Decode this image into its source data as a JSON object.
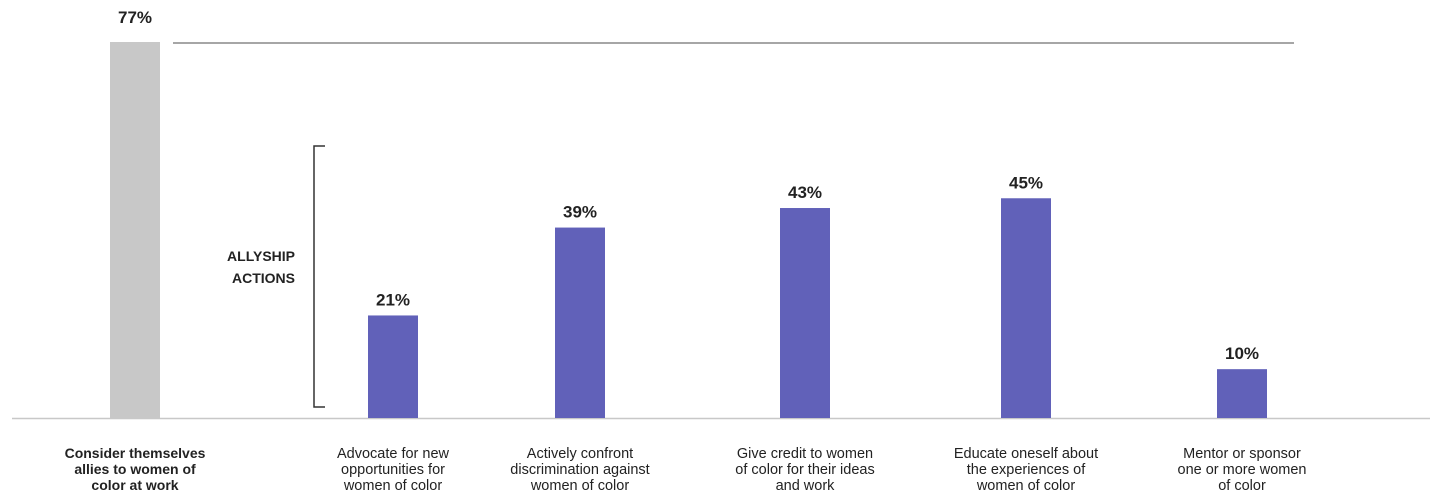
{
  "chart_data": {
    "type": "bar",
    "ylim": [
      0,
      80
    ],
    "grid": false,
    "colors": {
      "highlight_bar": "#c8c8c8",
      "action_bars": "#6161b9",
      "reference_line": "#a6a6a6",
      "baseline": "#c8c8c8",
      "bracket": "#333333"
    },
    "bracket_label": [
      "ALLYSHIP",
      "ACTIONS"
    ],
    "bars": [
      {
        "label": [
          "Consider themselves",
          "allies to women of",
          "color at work"
        ],
        "value": 77,
        "value_label": "77%",
        "group": "highlight"
      },
      {
        "label": [
          "Advocate for new",
          "opportunities for",
          "women of color"
        ],
        "value": 21,
        "value_label": "21%",
        "group": "action"
      },
      {
        "label": [
          "Actively confront",
          "discrimination against",
          "women of color"
        ],
        "value": 39,
        "value_label": "39%",
        "group": "action"
      },
      {
        "label": [
          "Give credit to women",
          "of color for their ideas",
          "and work"
        ],
        "value": 43,
        "value_label": "43%",
        "group": "action"
      },
      {
        "label": [
          "Educate oneself about",
          "the experiences of",
          "women of color"
        ],
        "value": 45,
        "value_label": "45%",
        "group": "action"
      },
      {
        "label": [
          "Mentor or sponsor",
          "one or more women",
          "of color"
        ],
        "value": 10,
        "value_label": "10%",
        "group": "action"
      }
    ]
  }
}
